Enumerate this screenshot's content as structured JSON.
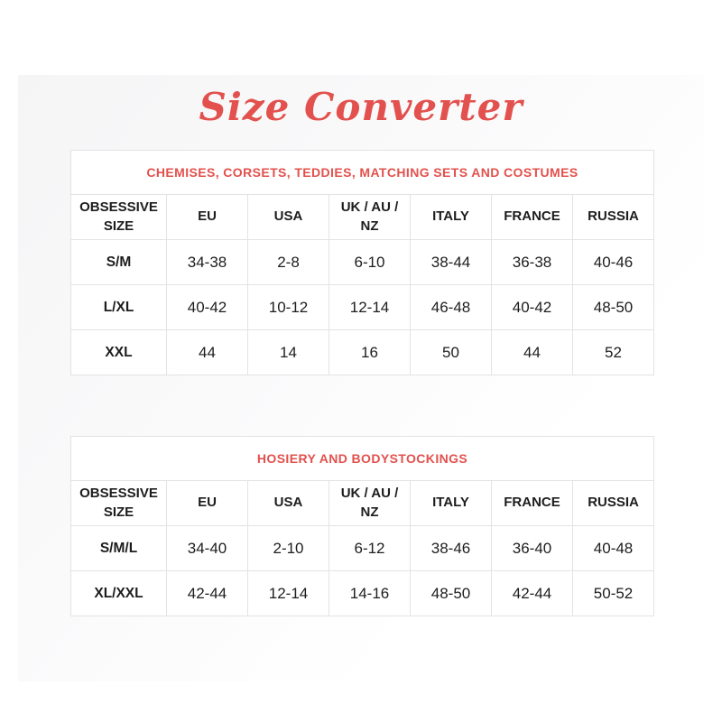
{
  "page": {
    "title": "Size Converter",
    "accent_color": "#e2514d",
    "text_color": "#1d1d1d",
    "border_color": "#e3e3e3"
  },
  "tables": [
    {
      "caption": "CHEMISES, CORSETS, TEDDIES, MATCHING SETS AND COSTUMES",
      "columns": [
        "OBSESSIVE SIZE",
        "EU",
        "USA",
        "UK / AU / NZ",
        "ITALY",
        "FRANCE",
        "RUSSIA"
      ],
      "rows": [
        [
          "S/M",
          "34-38",
          "2-8",
          "6-10",
          "38-44",
          "36-38",
          "40-46"
        ],
        [
          "L/XL",
          "40-42",
          "10-12",
          "12-14",
          "46-48",
          "40-42",
          "48-50"
        ],
        [
          "XXL",
          "44",
          "14",
          "16",
          "50",
          "44",
          "52"
        ]
      ]
    },
    {
      "caption": "HOSIERY AND BODYSTOCKINGS",
      "columns": [
        "OBSESSIVE SIZE",
        "EU",
        "USA",
        "UK / AU / NZ",
        "ITALY",
        "FRANCE",
        "RUSSIA"
      ],
      "rows": [
        [
          "S/M/L",
          "34-40",
          "2-10",
          "6-12",
          "38-46",
          "36-40",
          "40-48"
        ],
        [
          "XL/XXL",
          "42-44",
          "12-14",
          "14-16",
          "48-50",
          "42-44",
          "50-52"
        ]
      ]
    }
  ]
}
